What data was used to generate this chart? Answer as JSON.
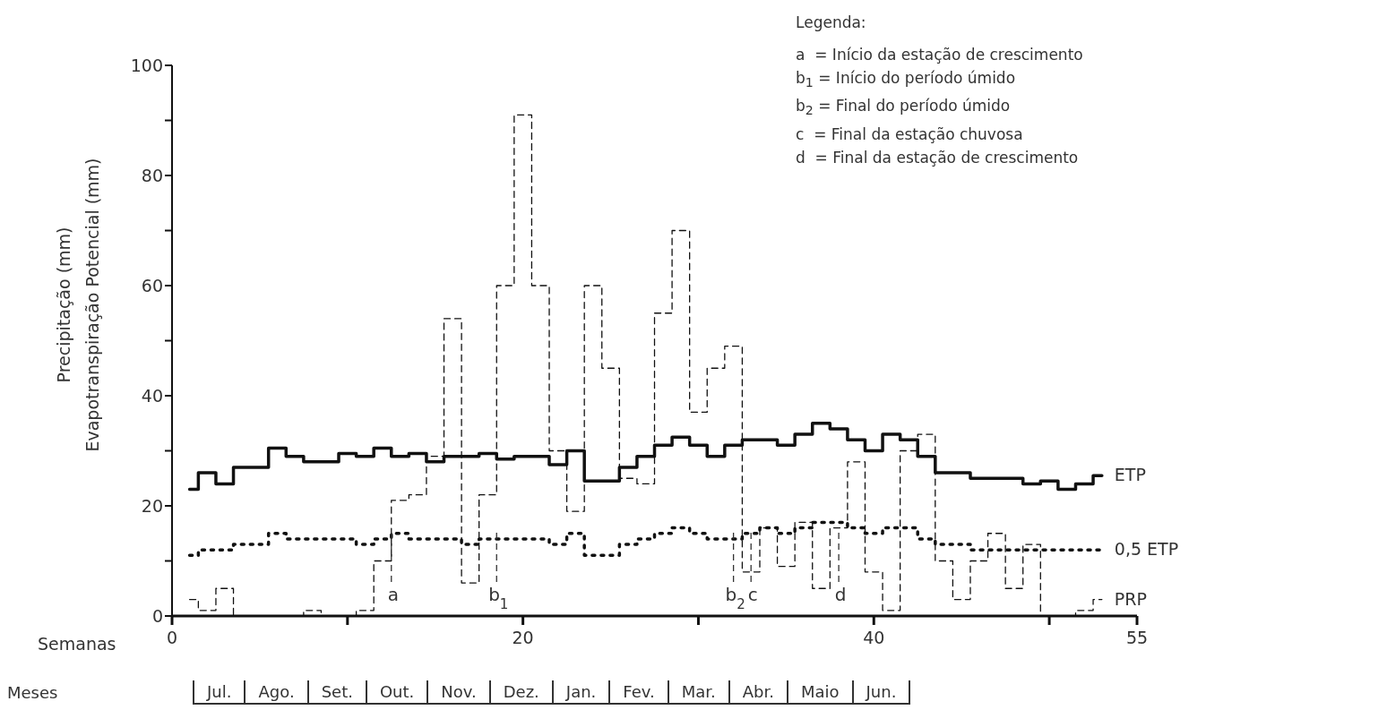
{
  "chart_data": {
    "type": "step",
    "xlabel": "Semanas",
    "ylabel": "Precipitação (mm)\nEvapotranspiração Potencial (mm)",
    "x": [
      1,
      2,
      3,
      4,
      5,
      6,
      7,
      8,
      9,
      10,
      11,
      12,
      13,
      14,
      15,
      16,
      17,
      18,
      19,
      20,
      21,
      22,
      23,
      24,
      25,
      26,
      27,
      28,
      29,
      30,
      31,
      32,
      33,
      34,
      35,
      36,
      37,
      38,
      39,
      40,
      41,
      42,
      43,
      44,
      45,
      46,
      47,
      48,
      49,
      50,
      51,
      52,
      53
    ],
    "xlim": [
      0,
      55
    ],
    "xticks": [
      0,
      {
        "value": 10,
        "label": null
      },
      20,
      {
        "value": 30,
        "label": null
      },
      40,
      {
        "value": 50,
        "label": null
      },
      55
    ],
    "ylim": [
      0,
      100
    ],
    "yticks": [
      0,
      {
        "value": 10,
        "label": null
      },
      20,
      {
        "value": 30,
        "label": null
      },
      40,
      {
        "value": 50,
        "label": null
      },
      60,
      {
        "value": 70,
        "label": null
      },
      80,
      {
        "value": 90,
        "label": null
      },
      100
    ],
    "grid": false,
    "legend": false,
    "series": [
      {
        "name": "ETP",
        "color": "#111111",
        "line_style": "solid",
        "values": [
          23,
          26,
          24,
          27,
          27,
          30.5,
          29,
          28,
          28,
          29.5,
          29,
          30.5,
          29,
          29.5,
          28,
          29,
          29,
          29.5,
          28.5,
          29,
          29,
          27.5,
          30,
          24.5,
          24.5,
          27,
          29,
          31,
          32.5,
          31,
          29,
          31,
          32,
          32,
          31,
          33,
          35,
          34,
          32,
          30,
          33,
          32,
          29,
          26,
          26,
          25,
          25,
          25,
          24,
          24.5,
          23,
          24,
          25.5
        ]
      },
      {
        "name": "0,5 ETP",
        "color": "#111111",
        "line_style": "dotted",
        "values": [
          11,
          12,
          12,
          13,
          13,
          15,
          14,
          14,
          14,
          14,
          13,
          14,
          15,
          14,
          14,
          14,
          13,
          14,
          14,
          14,
          14,
          13,
          15,
          11,
          11,
          13,
          14,
          15,
          16,
          15,
          14,
          14,
          15,
          16,
          15,
          16,
          17,
          17,
          16,
          15,
          16,
          16,
          14,
          13,
          13,
          12,
          12,
          12,
          12,
          12,
          12,
          12,
          12
        ]
      },
      {
        "name": "PRP",
        "color": "#111111",
        "line_style": "dashed",
        "values": [
          3,
          1,
          5,
          0,
          0,
          0,
          0,
          1,
          0,
          0,
          1,
          10,
          21,
          22,
          29,
          54,
          6,
          22,
          60,
          91,
          60,
          30,
          19,
          60,
          45,
          25,
          24,
          55,
          70,
          37,
          45,
          49,
          8,
          16,
          9,
          17,
          5,
          16,
          28,
          8,
          1,
          30,
          33,
          10,
          3,
          10,
          15,
          5,
          13,
          0,
          0,
          1,
          3
        ]
      }
    ],
    "ref_lines": [
      {
        "axis": "x",
        "value": 12.5,
        "label": "a",
        "line_style": "dashed"
      },
      {
        "axis": "x",
        "value": 18.5,
        "label": "b$_{1}$",
        "line_style": "dashed"
      },
      {
        "axis": "x",
        "value": 32,
        "label": "b$_{2}$",
        "line_style": "dashed"
      },
      {
        "axis": "x",
        "value": 33,
        "label": "c",
        "line_style": "dashed"
      },
      {
        "axis": "x",
        "value": 38,
        "label": "d",
        "line_style": "dashed"
      }
    ],
    "annotations": [
      "Legenda:",
      "a  = Início da estação de crescimento",
      "b$_{1}$ = Início do período úmido",
      "b$_{2}$ = Final do período úmido",
      "c  = Final da estação chuvosa",
      "d  = Final da estação de crescimento",
      "Meses",
      "Jul.",
      "Ago.",
      "Set.",
      "Out.",
      "Nov.",
      "Dez.",
      "Jan.",
      "Fev.",
      "Mar.",
      "Abr.",
      "Maio",
      "Jun."
    ]
  }
}
